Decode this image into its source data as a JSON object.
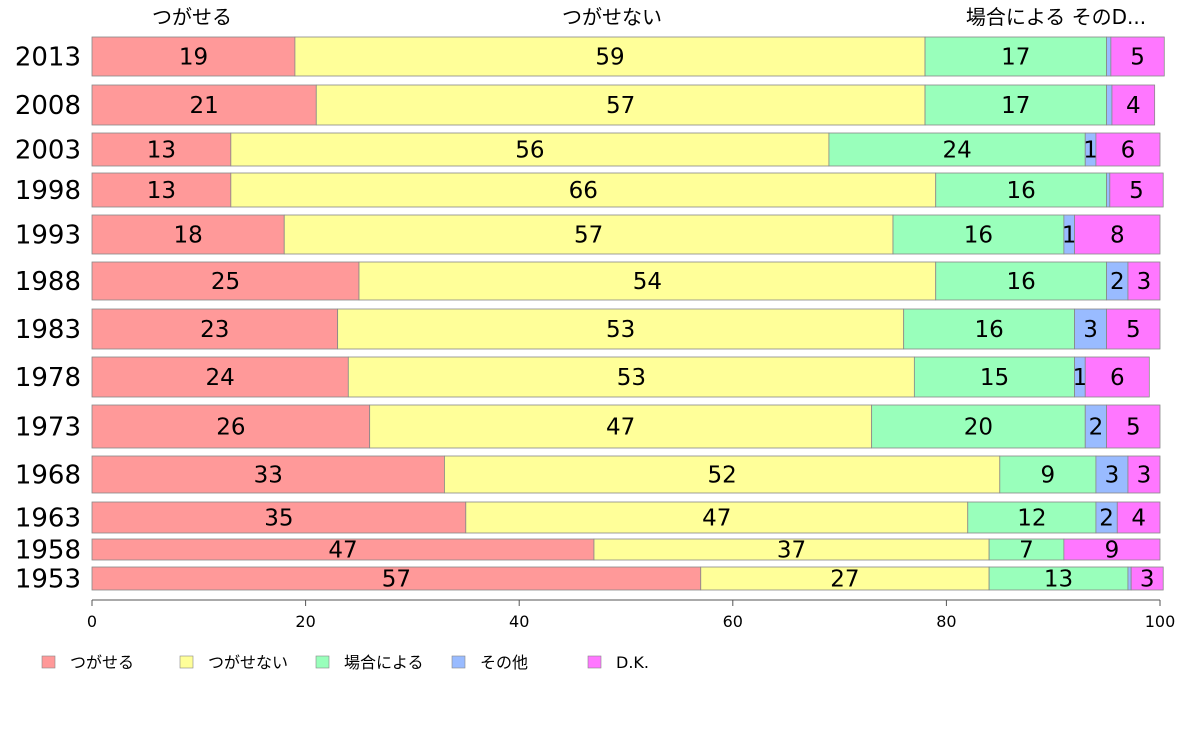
{
  "chart_data": {
    "type": "bar",
    "orientation": "horizontal",
    "stacked": true,
    "title": "",
    "xlabel": "",
    "ylabel": "",
    "xlim": [
      0,
      100
    ],
    "xticks": [
      0,
      20,
      40,
      60,
      80,
      100
    ],
    "grid": false,
    "legend_position": "bottom-left",
    "top_labels": [
      "つがせる",
      "つがせない",
      "場合による そのD..."
    ],
    "categories": [
      "2013",
      "2008",
      "2003",
      "1998",
      "1993",
      "1988",
      "1983",
      "1978",
      "1973",
      "1968",
      "1963",
      "1958",
      "1953"
    ],
    "series": [
      {
        "name": "つがせる",
        "color": "#ff9999",
        "values": [
          19,
          21,
          13,
          13,
          18,
          25,
          23,
          24,
          26,
          33,
          35,
          47,
          57
        ]
      },
      {
        "name": "つがせない",
        "color": "#ffff99",
        "values": [
          59,
          57,
          56,
          66,
          57,
          54,
          53,
          53,
          47,
          52,
          47,
          37,
          27
        ]
      },
      {
        "name": "場合による",
        "color": "#99ffbb",
        "values": [
          17,
          17,
          24,
          16,
          16,
          16,
          16,
          15,
          20,
          9,
          12,
          7,
          13
        ]
      },
      {
        "name": "その他",
        "color": "#99bbff",
        "values": [
          0.4,
          0.5,
          1,
          0.3,
          1,
          2,
          3,
          1,
          2,
          3,
          2,
          0,
          0.3
        ]
      },
      {
        "name": "D.K.",
        "color": "#ff77ff",
        "values": [
          5,
          4,
          6,
          5,
          8,
          3,
          5,
          6,
          5,
          3,
          4,
          9,
          3
        ]
      }
    ],
    "data_labels": [
      [
        "19",
        "59",
        "17",
        "",
        "5"
      ],
      [
        "21",
        "57",
        "17",
        "",
        "4"
      ],
      [
        "13",
        "56",
        "24",
        "1",
        "6"
      ],
      [
        "13",
        "66",
        "16",
        "",
        "5"
      ],
      [
        "18",
        "57",
        "16",
        "1",
        "8"
      ],
      [
        "25",
        "54",
        "16",
        "2",
        "3"
      ],
      [
        "23",
        "53",
        "16",
        "3",
        "5"
      ],
      [
        "24",
        "53",
        "15",
        "1",
        "6"
      ],
      [
        "26",
        "47",
        "20",
        "2",
        "5"
      ],
      [
        "33",
        "52",
        "9",
        "3",
        "3"
      ],
      [
        "35",
        "47",
        "12",
        "2",
        "4"
      ],
      [
        "47",
        "37",
        "7",
        "",
        "9"
      ],
      [
        "57",
        "27",
        "13",
        "",
        "3"
      ]
    ]
  }
}
